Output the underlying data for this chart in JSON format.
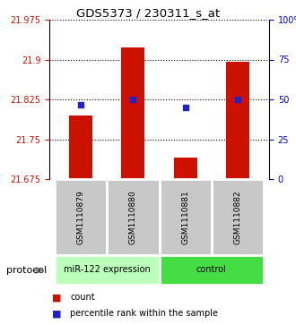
{
  "title": "GDS5373 / 230311_s_at",
  "samples": [
    "GSM1110879",
    "GSM1110880",
    "GSM1110881",
    "GSM1110882"
  ],
  "bar_values": [
    21.795,
    21.922,
    21.715,
    21.895
  ],
  "dot_values": [
    21.815,
    21.825,
    21.81,
    21.825
  ],
  "y_min": 21.675,
  "y_max": 21.975,
  "y_ticks_left": [
    21.675,
    21.75,
    21.825,
    21.9,
    21.975
  ],
  "y_ticks_right": [
    0,
    25,
    50,
    75,
    100
  ],
  "bar_color": "#cc1100",
  "dot_color": "#2222cc",
  "bar_bottom": 21.675,
  "groups": [
    {
      "label": "miR-122 expression",
      "samples": [
        0,
        1
      ],
      "color": "#bbffbb"
    },
    {
      "label": "control",
      "samples": [
        2,
        3
      ],
      "color": "#44dd44"
    }
  ],
  "legend_count_label": "count",
  "legend_pct_label": "percentile rank within the sample",
  "protocol_label": "protocol",
  "background_color": "#ffffff",
  "plot_bg_color": "#ffffff",
  "left_tick_color": "#cc1100",
  "right_tick_color": "#0000cc",
  "sample_box_color": "#c8c8c8",
  "sample_box_edge": "#ffffff"
}
